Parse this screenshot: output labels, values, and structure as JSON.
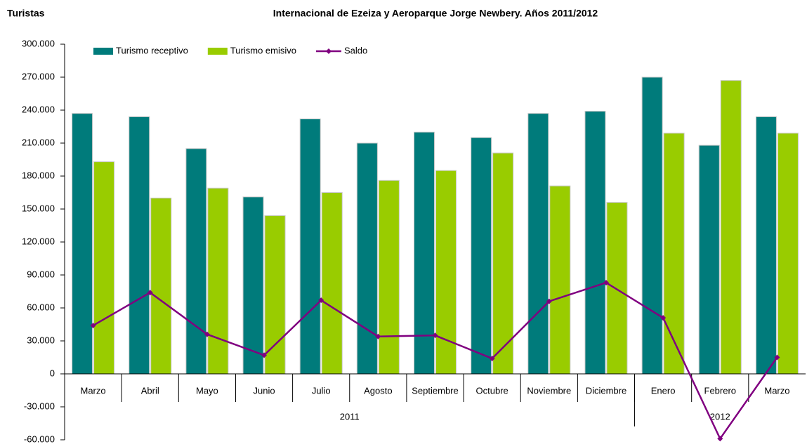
{
  "chart_data": {
    "type": "bar-line",
    "title": "Internacional de Ezeiza y Aeroparque Jorge Newbery. Años 2011/2012",
    "y_label": "Turistas",
    "groups": [
      {
        "label": "2011",
        "categories": [
          "Marzo",
          "Abril",
          "Mayo",
          "Junio",
          "Julio",
          "Agosto",
          "Septiembre",
          "Octubre",
          "Noviembre",
          "Diciembre"
        ]
      },
      {
        "label": "2012",
        "categories": [
          "Enero",
          "Febrero",
          "Marzo"
        ]
      }
    ],
    "series": [
      {
        "name": "Turismo receptivo",
        "type": "bar",
        "color": "#007b7b",
        "values": [
          237000,
          234000,
          205000,
          161000,
          232000,
          210000,
          220000,
          215000,
          237000,
          239000,
          270000,
          208000,
          234000
        ]
      },
      {
        "name": "Turismo emisivo",
        "type": "bar",
        "color": "#99cc00",
        "values": [
          193000,
          160000,
          169000,
          144000,
          165000,
          176000,
          185000,
          201000,
          171000,
          156000,
          219000,
          267000,
          219000
        ]
      },
      {
        "name": "Saldo",
        "type": "line",
        "color": "#800080",
        "values": [
          44000,
          74000,
          36000,
          17000,
          67000,
          34000,
          35000,
          14000,
          66000,
          83000,
          51000,
          -59000,
          15000
        ]
      }
    ],
    "ylim": [
      -60000,
      300000
    ],
    "yticks": [
      {
        "value": -60000,
        "label": "-60.000"
      },
      {
        "value": -30000,
        "label": "-30.000"
      },
      0,
      {
        "value": 30000,
        "label": "30.000"
      },
      {
        "value": 60000,
        "label": "60.000"
      },
      {
        "value": 90000,
        "label": "90.000"
      },
      {
        "value": 120000,
        "label": "120.000"
      },
      {
        "value": 150000,
        "label": "150.000"
      },
      {
        "value": 180000,
        "label": "180.000"
      },
      {
        "value": 210000,
        "label": "210.000"
      },
      {
        "value": 240000,
        "label": "240.000"
      },
      {
        "value": 270000,
        "label": "270.000"
      },
      {
        "value": 300000,
        "label": "300.000"
      }
    ],
    "legend": "top"
  }
}
